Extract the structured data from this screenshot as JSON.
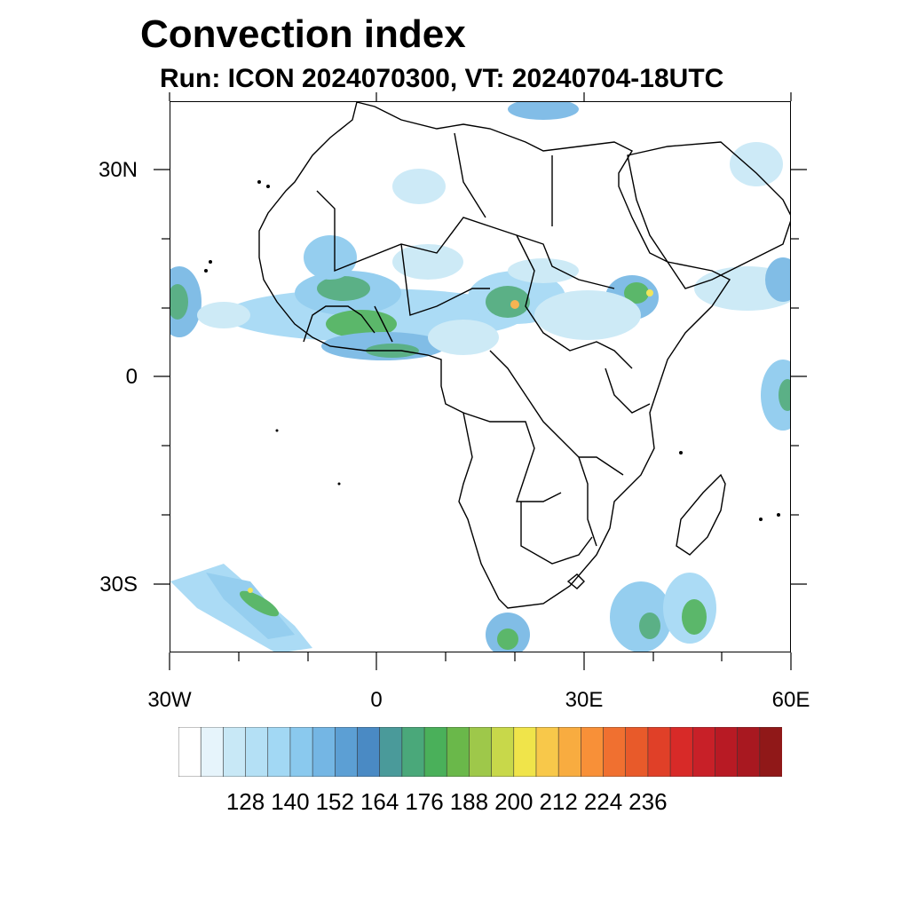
{
  "title": "Convection index",
  "subtitle": "Run: ICON 2024070300,  VT: 20240704-18UTC",
  "map": {
    "lon_range": [
      -30,
      60
    ],
    "lat_range": [
      -40,
      40
    ],
    "x_tick_labels": [
      "30W",
      "0",
      "30E",
      "60E"
    ],
    "y_tick_labels": [
      "30N",
      "0",
      "30S"
    ],
    "land_color": "#ffffff",
    "border_color": "#000000"
  },
  "colorbar": {
    "colors": [
      "#ffffff",
      "#e6f4fb",
      "#c8e8f6",
      "#b4e0f5",
      "#a2d8f4",
      "#8ac9ee",
      "#74b6e4",
      "#5c9fd4",
      "#4a8ac4",
      "#4a9a9a",
      "#4aa87a",
      "#4ab05a",
      "#6ab84a",
      "#9ec84a",
      "#c8d84a",
      "#f0e44a",
      "#f8c84a",
      "#f8ac40",
      "#f89038",
      "#f07030",
      "#e85a2a",
      "#e04028",
      "#d82a28",
      "#c82028",
      "#b81a24",
      "#a81820",
      "#901818"
    ],
    "tick_labels": [
      "128",
      "140",
      "152",
      "164",
      "176",
      "188",
      "200",
      "212",
      "224",
      "236"
    ]
  }
}
